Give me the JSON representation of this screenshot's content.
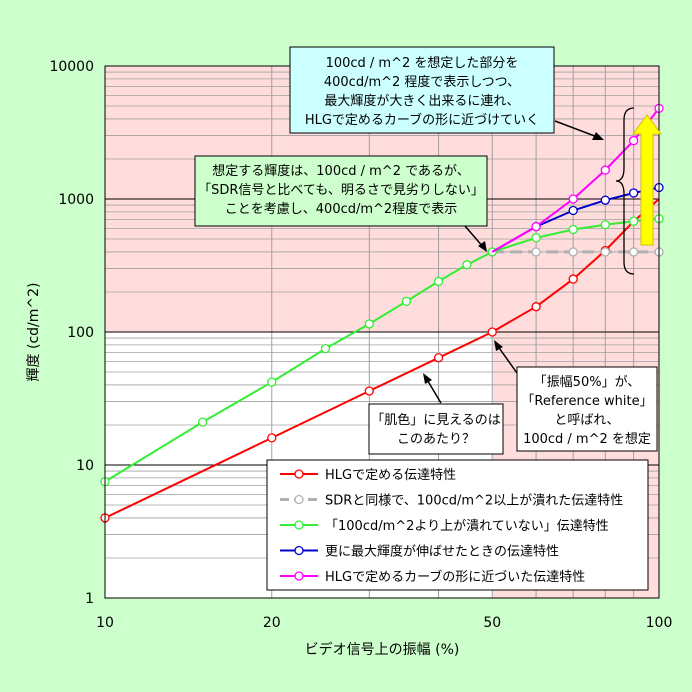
{
  "chart_data": {
    "type": "line",
    "xscale": "log",
    "yscale": "log",
    "xlim": [
      10,
      100
    ],
    "ylim": [
      1,
      10000
    ],
    "xlabel": "ビデオ信号上の振幅 (%)",
    "ylabel": "輝度 (cd/m^2)",
    "xticks": [
      "10",
      "20",
      "50",
      "100"
    ],
    "yticks": [
      "1",
      "10",
      "100",
      "1000",
      "10000"
    ],
    "grid": true,
    "legend_position": "lower-right",
    "series": [
      {
        "name": "HLGで定める伝達特性",
        "color": "#ff0000",
        "line_style": "solid",
        "points": [
          [
            10,
            4
          ],
          [
            20,
            16
          ],
          [
            30,
            36
          ],
          [
            40,
            64
          ],
          [
            50,
            100
          ],
          [
            60,
            155
          ],
          [
            70,
            250
          ],
          [
            80,
            410
          ],
          [
            90,
            680
          ],
          [
            100,
            1000
          ]
        ],
        "marker_x": [
          10,
          20,
          30,
          40,
          50,
          60,
          70,
          80
        ]
      },
      {
        "name": "SDRと同様で、100cd/m^2以上が潰れた伝達特性",
        "color": "#b0b0b0",
        "line_style": "dashed",
        "points": [
          [
            50,
            400
          ],
          [
            60,
            400
          ],
          [
            70,
            400
          ],
          [
            80,
            400
          ],
          [
            90,
            400
          ],
          [
            100,
            400
          ]
        ],
        "marker_x": [
          50,
          60,
          70,
          80,
          90,
          100
        ]
      },
      {
        "name": "「100cd/m^2より上が潰れていない」伝達特性",
        "color": "#33ee33",
        "line_style": "solid",
        "points": [
          [
            10,
            7.5
          ],
          [
            15,
            21
          ],
          [
            20,
            42
          ],
          [
            25,
            75
          ],
          [
            30,
            115
          ],
          [
            35,
            170
          ],
          [
            40,
            240
          ],
          [
            45,
            320
          ],
          [
            50,
            400
          ],
          [
            60,
            510
          ],
          [
            70,
            590
          ],
          [
            80,
            640
          ],
          [
            90,
            680
          ],
          [
            100,
            710
          ]
        ],
        "marker_x": [
          10,
          15,
          20,
          25,
          30,
          35,
          40,
          45,
          50,
          60,
          70,
          80,
          90,
          100
        ]
      },
      {
        "name": "更に最大輝度が伸ばせたときの伝達特性",
        "color": "#0000cc",
        "line_style": "solid",
        "points": [
          [
            50,
            400
          ],
          [
            60,
            620
          ],
          [
            70,
            820
          ],
          [
            80,
            980
          ],
          [
            90,
            1110
          ],
          [
            100,
            1220
          ]
        ],
        "marker_x": [
          60,
          70,
          80,
          90,
          100
        ]
      },
      {
        "name": "HLGで定めるカーブの形に近づいた伝達特性",
        "color": "#ff00ff",
        "line_style": "solid",
        "points": [
          [
            50,
            400
          ],
          [
            60,
            620
          ],
          [
            70,
            1000
          ],
          [
            80,
            1650
          ],
          [
            90,
            2750
          ],
          [
            100,
            4800
          ]
        ],
        "marker_x": [
          60,
          70,
          80,
          90,
          100
        ]
      }
    ],
    "annotations": [
      {
        "lines": [
          "100cd / m^2 を想定した部分を",
          "400cd/m^2 程度で表示しつつ、",
          "最大輝度が大きく出来るに連れ、",
          "HLGで定めるカーブの形に近づけていく"
        ]
      },
      {
        "lines": [
          "想定する輝度は、100cd / m^2 であるが、",
          "「SDR信号と比べても、明るさで見劣りしない」",
          "ことを考慮し、400cd/m^2程度で表示"
        ]
      },
      {
        "lines": [
          "「振幅50%」が、",
          "「Reference white」",
          "と呼ばれ、",
          "100cd / m^2 を想定"
        ]
      },
      {
        "lines": [
          "「肌色」に見えるのは",
          "このあたり？"
        ]
      }
    ]
  }
}
